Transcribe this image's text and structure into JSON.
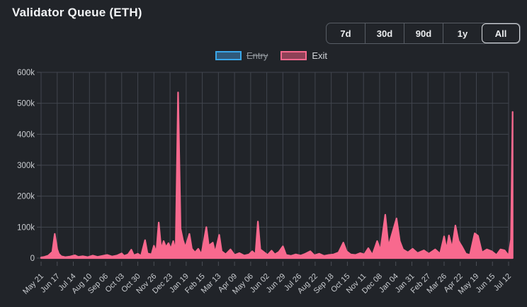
{
  "header": {
    "title": "Validator Queue (ETH)"
  },
  "controls": {
    "ranges": [
      {
        "label": "7d",
        "selected": false
      },
      {
        "label": "30d",
        "selected": false
      },
      {
        "label": "90d",
        "selected": false
      },
      {
        "label": "1y",
        "selected": false
      },
      {
        "label": "All",
        "selected": true
      }
    ]
  },
  "legend": [
    {
      "label": "Entry",
      "border_color": "#3aa7ea",
      "fill_color": "#30597a",
      "disabled": true
    },
    {
      "label": "Exit",
      "border_color": "#f8698e",
      "fill_color": "#8f4157",
      "disabled": false
    }
  ],
  "chart_data": {
    "type": "area",
    "title": "Validator Queue (ETH)",
    "unit": "ETH",
    "grid": true,
    "legend_position": "top",
    "ylim": [
      0,
      600000
    ],
    "y_tick_labels": [
      "600k",
      "500k",
      "400k",
      "300k",
      "200k",
      "100k",
      "0"
    ],
    "y_tick_values": [
      600000,
      500000,
      400000,
      300000,
      200000,
      100000,
      0
    ],
    "x_tick_interval_days": 28,
    "x_tick_labels": [
      "May 21",
      "Jun 17",
      "Jul 14",
      "Aug 10",
      "Sep 06",
      "Oct 03",
      "Oct 30",
      "Nov 26",
      "Dec 23",
      "Jan 19",
      "Feb 15",
      "Mar 13",
      "Apr 09",
      "May 06",
      "Jun 02",
      "Jun 29",
      "Jul 26",
      "Aug 22",
      "Sep 18",
      "Oct 15",
      "Nov 11",
      "Dec 08",
      "Jan 04",
      "Jan 31",
      "Feb 27",
      "Mar 26",
      "Apr 22",
      "May 19",
      "Jun 15",
      "Jul 12"
    ],
    "series": [
      {
        "name": "Entry",
        "color": "#3aa7ea",
        "hidden": true,
        "points": []
      },
      {
        "name": "Exit",
        "color": "#f8698e",
        "hidden": false,
        "points_x_unit": "x-axis tick index (each tick = 28 days)",
        "points": [
          [
            0,
            2000
          ],
          [
            0.2,
            4000
          ],
          [
            0.45,
            8000
          ],
          [
            0.7,
            20000
          ],
          [
            0.85,
            78000
          ],
          [
            1.0,
            28000
          ],
          [
            1.1,
            14000
          ],
          [
            1.25,
            6000
          ],
          [
            1.5,
            3000
          ],
          [
            1.8,
            5000
          ],
          [
            2.1,
            9000
          ],
          [
            2.3,
            4000
          ],
          [
            2.6,
            6000
          ],
          [
            2.9,
            3000
          ],
          [
            3.2,
            8000
          ],
          [
            3.5,
            4000
          ],
          [
            3.8,
            7000
          ],
          [
            4.1,
            10000
          ],
          [
            4.4,
            5000
          ],
          [
            4.7,
            8000
          ],
          [
            5.0,
            15000
          ],
          [
            5.15,
            7000
          ],
          [
            5.4,
            12000
          ],
          [
            5.6,
            27000
          ],
          [
            5.75,
            9000
          ],
          [
            6.0,
            14000
          ],
          [
            6.2,
            7000
          ],
          [
            6.45,
            58000
          ],
          [
            6.6,
            15000
          ],
          [
            6.85,
            12000
          ],
          [
            7.0,
            40000
          ],
          [
            7.15,
            18000
          ],
          [
            7.3,
            115000
          ],
          [
            7.45,
            28000
          ],
          [
            7.6,
            55000
          ],
          [
            7.75,
            35000
          ],
          [
            7.9,
            48000
          ],
          [
            8.05,
            30000
          ],
          [
            8.2,
            55000
          ],
          [
            8.35,
            22000
          ],
          [
            8.5,
            535000
          ],
          [
            8.65,
            95000
          ],
          [
            8.8,
            58000
          ],
          [
            8.95,
            35000
          ],
          [
            9.2,
            78000
          ],
          [
            9.35,
            30000
          ],
          [
            9.55,
            18000
          ],
          [
            9.75,
            30000
          ],
          [
            9.95,
            12000
          ],
          [
            10.25,
            100000
          ],
          [
            10.4,
            40000
          ],
          [
            10.65,
            50000
          ],
          [
            10.8,
            18000
          ],
          [
            11.05,
            75000
          ],
          [
            11.2,
            22000
          ],
          [
            11.45,
            12000
          ],
          [
            11.75,
            28000
          ],
          [
            12.0,
            10000
          ],
          [
            12.3,
            16000
          ],
          [
            12.6,
            8000
          ],
          [
            12.9,
            12000
          ],
          [
            13.1,
            22000
          ],
          [
            13.3,
            12000
          ],
          [
            13.45,
            118000
          ],
          [
            13.6,
            28000
          ],
          [
            13.8,
            20000
          ],
          [
            14.05,
            10000
          ],
          [
            14.3,
            24000
          ],
          [
            14.5,
            12000
          ],
          [
            14.75,
            20000
          ],
          [
            15.0,
            38000
          ],
          [
            15.2,
            10000
          ],
          [
            15.5,
            7000
          ],
          [
            15.8,
            12000
          ],
          [
            16.1,
            8000
          ],
          [
            16.4,
            14000
          ],
          [
            16.7,
            22000
          ],
          [
            16.95,
            9000
          ],
          [
            17.25,
            14000
          ],
          [
            17.55,
            7000
          ],
          [
            17.85,
            10000
          ],
          [
            18.15,
            12000
          ],
          [
            18.45,
            18000
          ],
          [
            18.75,
            50000
          ],
          [
            18.95,
            22000
          ],
          [
            19.2,
            12000
          ],
          [
            19.5,
            10000
          ],
          [
            19.8,
            16000
          ],
          [
            20.05,
            12000
          ],
          [
            20.3,
            32000
          ],
          [
            20.55,
            10000
          ],
          [
            20.85,
            55000
          ],
          [
            21.05,
            25000
          ],
          [
            21.35,
            140000
          ],
          [
            21.55,
            38000
          ],
          [
            22.05,
            128000
          ],
          [
            22.25,
            55000
          ],
          [
            22.45,
            28000
          ],
          [
            22.75,
            18000
          ],
          [
            23.05,
            30000
          ],
          [
            23.35,
            16000
          ],
          [
            23.75,
            25000
          ],
          [
            24.05,
            14000
          ],
          [
            24.45,
            28000
          ],
          [
            24.75,
            14000
          ],
          [
            25.0,
            70000
          ],
          [
            25.15,
            28000
          ],
          [
            25.3,
            73000
          ],
          [
            25.5,
            32000
          ],
          [
            25.7,
            105000
          ],
          [
            25.9,
            55000
          ],
          [
            26.1,
            38000
          ],
          [
            26.35,
            14000
          ],
          [
            26.6,
            10000
          ],
          [
            26.9,
            80000
          ],
          [
            27.1,
            72000
          ],
          [
            27.35,
            18000
          ],
          [
            27.65,
            28000
          ],
          [
            27.95,
            22000
          ],
          [
            28.25,
            10000
          ],
          [
            28.5,
            28000
          ],
          [
            28.75,
            25000
          ],
          [
            29.0,
            8000
          ],
          [
            29.15,
            60000
          ],
          [
            29.25,
            472000
          ]
        ]
      }
    ]
  }
}
